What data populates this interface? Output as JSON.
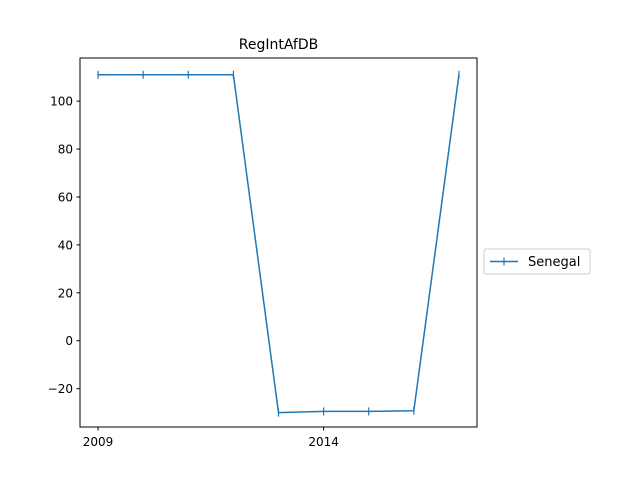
{
  "chart_data": {
    "type": "line",
    "title": "RegIntAfDB",
    "xlabel": "",
    "ylabel": "",
    "x": [
      2009,
      2010,
      2011,
      2012,
      2013,
      2014,
      2015,
      2016,
      2017
    ],
    "x_tick_values": [
      2009,
      2014
    ],
    "x_tick_labels": [
      "2009",
      "2014"
    ],
    "xlim": [
      2008.6,
      2017.4
    ],
    "ylim": [
      -36,
      118
    ],
    "y_ticks": [
      -20,
      0,
      20,
      40,
      60,
      80,
      100
    ],
    "y_tick_labels": [
      "−20",
      "0",
      "20",
      "40",
      "60",
      "80",
      "100"
    ],
    "series": [
      {
        "name": "Senegal",
        "color": "#1f77b4",
        "marker": "vertical-tick",
        "values": [
          111,
          111,
          111,
          111,
          -30,
          -29.5,
          -29.5,
          -29.2,
          111
        ]
      }
    ],
    "legend_placement": "right-outside",
    "grid": false
  }
}
